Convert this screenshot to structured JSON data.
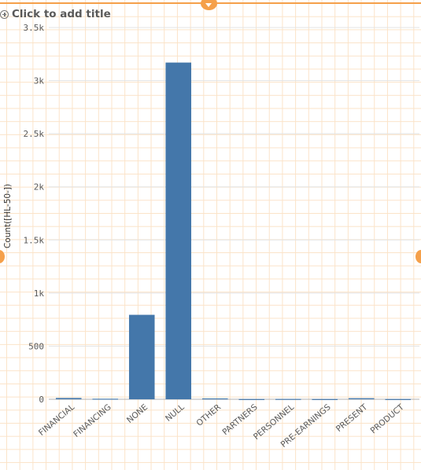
{
  "title_placeholder": "Click to add title",
  "colors": {
    "bar": "#4477aa",
    "accent": "#f5a04a",
    "gridline": "#e3e3e3",
    "editor_grid": "#fbe3c8"
  },
  "chart_data": {
    "type": "bar",
    "title": "",
    "xlabel": "",
    "ylabel": "Count([HL-50-])",
    "categories": [
      "FINANCIAL",
      "FINANCING",
      "NONE",
      "NULL",
      "OTHER",
      "PARTNERS",
      "PERSONNEL",
      "PRE-EARNINGS",
      "PRESENT",
      "PRODUCT"
    ],
    "values": [
      12,
      5,
      795,
      3170,
      8,
      2,
      3,
      2,
      10,
      2
    ],
    "ylim": [
      0,
      3500
    ],
    "yticks": [
      0,
      500,
      1000,
      1500,
      2000,
      2500,
      3000,
      3500
    ],
    "ytick_labels": [
      "0",
      "500",
      "1k",
      "1.5k",
      "2k",
      "2.5k",
      "3k",
      "3.5k"
    ],
    "grid": true,
    "legend": "none"
  }
}
